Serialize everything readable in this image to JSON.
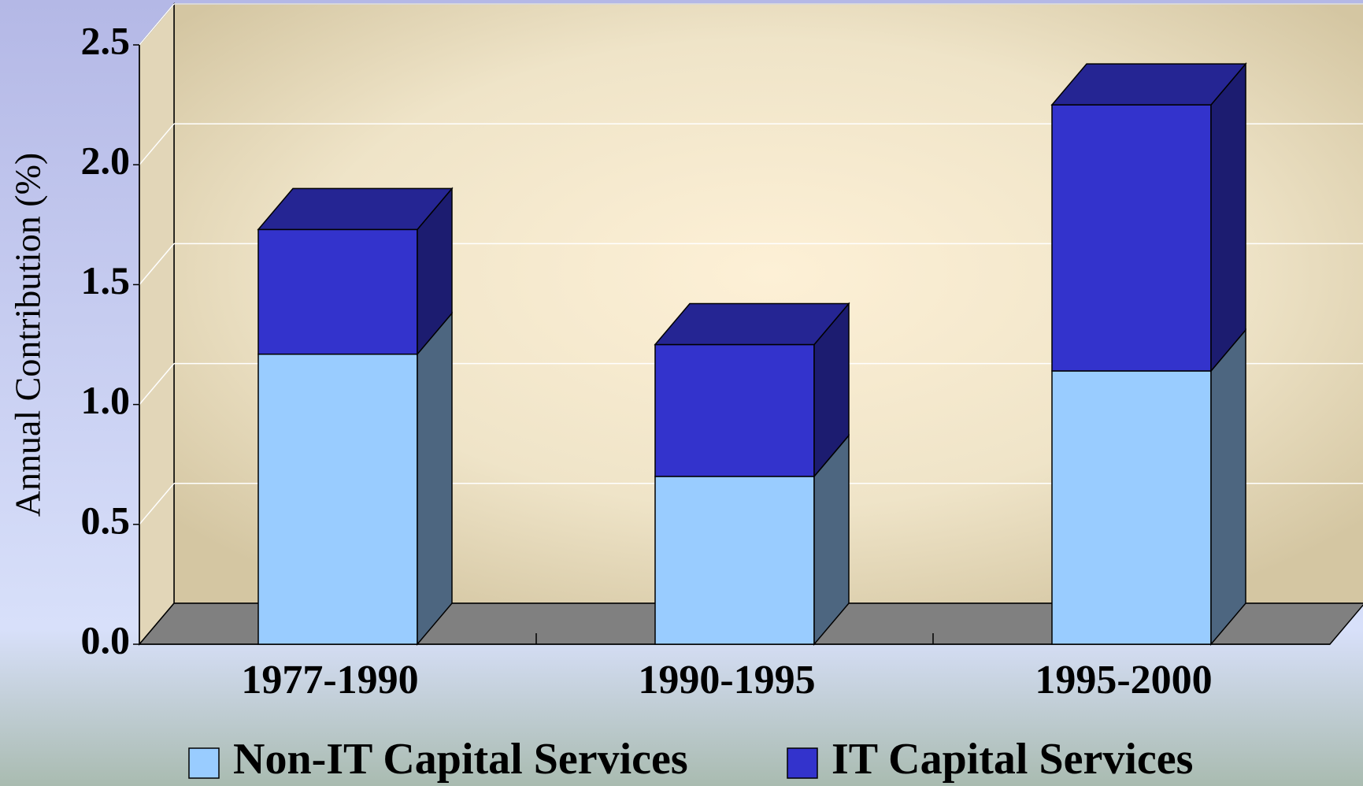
{
  "chart_data": {
    "type": "bar",
    "stacked": true,
    "y_label": "Annual Contribution (%)",
    "categories": [
      "1977-1990",
      "1990-1995",
      "1995-2000"
    ],
    "series": [
      {
        "name": "Non-IT Capital Services",
        "color": "#99ccff",
        "values": [
          1.21,
          0.7,
          1.14
        ]
      },
      {
        "name": "IT Capital Services",
        "color": "#3333cc",
        "values": [
          0.52,
          0.55,
          1.11
        ]
      }
    ],
    "ylim": [
      0,
      2.5
    ],
    "yticks": [
      {
        "value": 0,
        "label": "0.0"
      },
      {
        "value": 0.5,
        "label": "0.5"
      },
      {
        "value": 1,
        "label": "1.0"
      },
      {
        "value": 1.5,
        "label": "1.5"
      },
      {
        "value": 2,
        "label": "2.0"
      },
      {
        "value": 2.5,
        "label": "2.5"
      }
    ],
    "grid": true,
    "legend": "bottom"
  }
}
